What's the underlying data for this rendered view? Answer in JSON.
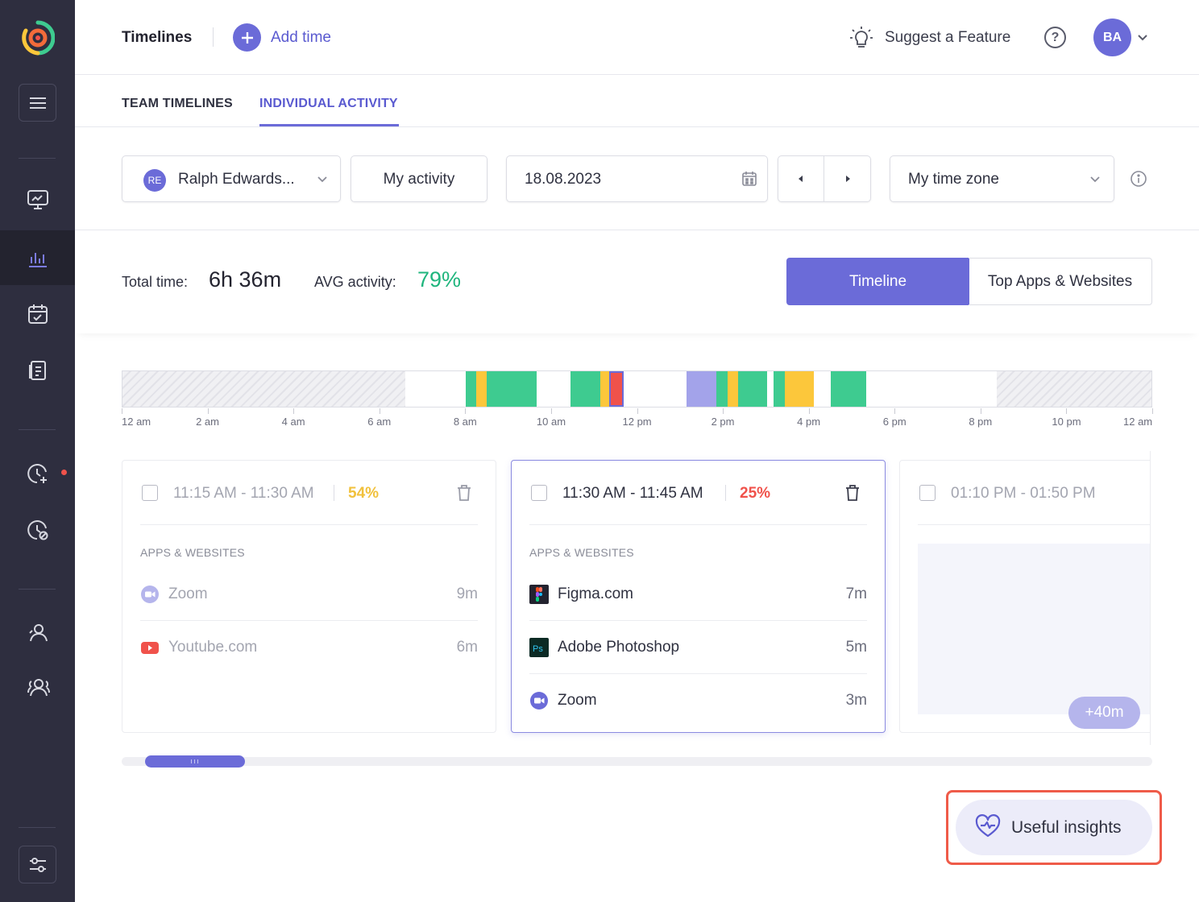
{
  "header": {
    "title": "Timelines",
    "add_time_label": "Add time",
    "suggest_label": "Suggest a Feature",
    "help_glyph": "?",
    "avatar_initials": "BA"
  },
  "tabs": [
    {
      "label": "TEAM TIMELINES",
      "active": false
    },
    {
      "label": "INDIVIDUAL ACTIVITY",
      "active": true
    }
  ],
  "filters": {
    "user_initials": "RE",
    "user_name": "Ralph Edwards...",
    "activity_label": "My activity",
    "date_value": "18.08.2023",
    "timezone_label": "My time zone"
  },
  "summary": {
    "total_time_label": "Total time:",
    "total_time_value": "6h 36m",
    "avg_activity_label": "AVG activity:",
    "avg_activity_value": "79%",
    "view_timeline": "Timeline",
    "view_top_apps": "Top Apps & Websites"
  },
  "timeline": {
    "ticks": [
      "12 am",
      "2 am",
      "4 am",
      "6 am",
      "8 am",
      "10 am",
      "12 pm",
      "2 pm",
      "4 pm",
      "6 pm",
      "8 pm",
      "10 pm",
      "12 am"
    ],
    "colors": {
      "green": "#3ecb90",
      "yellow": "#fcc73b",
      "red": "#f0524b",
      "purple": "#a3a3ea"
    }
  },
  "cards": [
    {
      "time_range": "11:15 AM - 11:30 AM",
      "activity_pct": "54%",
      "pct_color": "#f1c13c",
      "apps_header": "APPS & WEBSITES",
      "apps": [
        {
          "icon": "zoom-icon",
          "name": "Zoom",
          "duration": "9m"
        },
        {
          "icon": "youtube-icon",
          "name": "Youtube.com",
          "duration": "6m"
        }
      ]
    },
    {
      "time_range": "11:30 AM - 11:45 AM",
      "activity_pct": "25%",
      "pct_color": "#f0524b",
      "apps_header": "APPS & WEBSITES",
      "apps": [
        {
          "icon": "figma-icon",
          "name": "Figma.com",
          "duration": "7m"
        },
        {
          "icon": "photoshop-icon",
          "name": "Adobe Photoshop",
          "duration": "5m"
        },
        {
          "icon": "zoom-icon",
          "name": "Zoom",
          "duration": "3m"
        }
      ]
    },
    {
      "time_range": "01:10 PM - 01:50 PM",
      "extra_label": "+40m"
    }
  ],
  "insights_label": "Useful insights"
}
